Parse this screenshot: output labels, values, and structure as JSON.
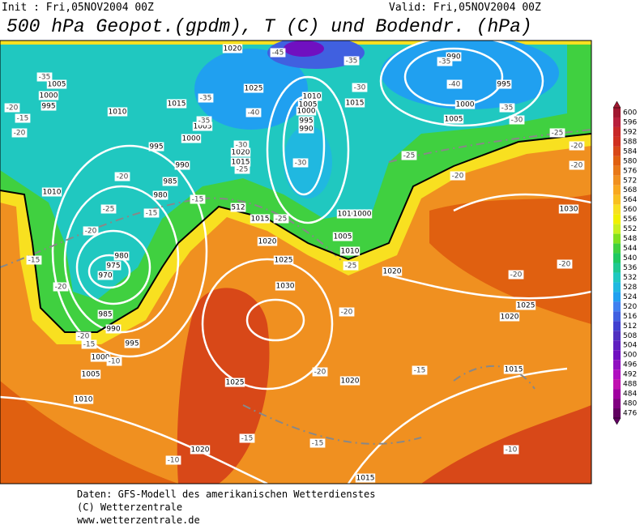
{
  "header": {
    "init": "Init : Fri,05NOV2004 00Z",
    "valid": "Valid: Fri,05NOV2004 00Z",
    "title": "500 hPa Geopot.(gpdm), T (C) und Bodendr. (hPa)"
  },
  "colorbar": {
    "ticks": [
      600,
      596,
      592,
      588,
      584,
      580,
      576,
      572,
      568,
      564,
      560,
      556,
      552,
      548,
      544,
      540,
      536,
      532,
      528,
      524,
      520,
      516,
      512,
      508,
      504,
      500,
      496,
      492,
      488,
      484,
      480,
      476
    ],
    "colors": [
      "#a01830",
      "#b8203c",
      "#c82828",
      "#d03020",
      "#d84818",
      "#e06010",
      "#e87818",
      "#f09020",
      "#f8a820",
      "#f8c020",
      "#f8e020",
      "#f0f000",
      "#c8f020",
      "#80e020",
      "#40d040",
      "#20c860",
      "#20c890",
      "#20c8c0",
      "#20b8e0",
      "#20a0f0",
      "#4080f0",
      "#4060e0",
      "#4040d0",
      "#5030c0",
      "#6020c0",
      "#7010c0",
      "#9010c0",
      "#b010c0",
      "#c010b0",
      "#a000a0",
      "#800080",
      "#600060"
    ]
  },
  "map": {
    "isobar_labels": [
      "1005",
      "1000",
      "995",
      "1010",
      "1015",
      "1005",
      "1000",
      "995",
      "990",
      "985",
      "980",
      "1010",
      "1020",
      "1025",
      "1010",
      "1005",
      "1000",
      "995",
      "990",
      "1020",
      "1015",
      "1015",
      "1015",
      "1020",
      "1025",
      "1030",
      "1010",
      "1000",
      "1005",
      "1010",
      "1020",
      "990",
      "995",
      "1000",
      "1005",
      "1030",
      "1025",
      "1020",
      "1015",
      "1020",
      "1025",
      "980",
      "975",
      "970",
      "985",
      "990",
      "995",
      "1000",
      "1005",
      "1010",
      "1020",
      "1015",
      "512"
    ],
    "temperature_labels": [
      "-35",
      "-20",
      "-15",
      "-20",
      "-45",
      "-35",
      "-35",
      "-40",
      "-35",
      "-30",
      "-25",
      "-30",
      "-35",
      "-30",
      "-40",
      "-35",
      "-25",
      "-30",
      "-25",
      "-20",
      "-20",
      "-20",
      "-25",
      "-20",
      "-15",
      "-15",
      "-25",
      "-20",
      "-15",
      "-20",
      "-20",
      "-15",
      "-10",
      "-25",
      "-20",
      "-20",
      "-20",
      "-20",
      "-15",
      "-15",
      "-15",
      "-10",
      "-10"
    ]
  },
  "footer": {
    "line1": "Daten: GFS-Modell des amerikanischen Wetterdienstes",
    "line2": "(C) Wetterzentrale",
    "line3": "www.wetterzentrale.de"
  }
}
